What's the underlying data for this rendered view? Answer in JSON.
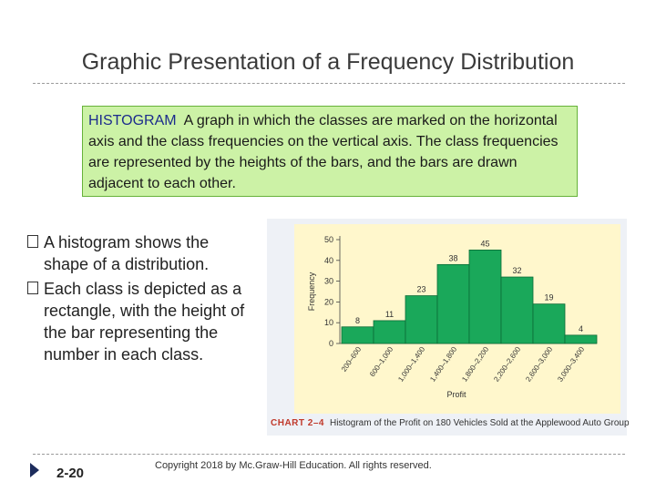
{
  "slide": {
    "title": "Graphic Presentation of a Frequency Distribution",
    "definition": {
      "term": "HISTOGRAM",
      "text": "A graph in which the classes are marked on the horizontal axis and the class frequencies on the vertical axis. The class frequencies are represented by the heights of the bars, and the bars are drawn adjacent to each other."
    },
    "bullets": [
      "A histogram shows the shape of a distribution.",
      "Each class is depicted as a rectangle, with the height of the bar representing the number in each class."
    ],
    "caption": {
      "label": "CHART 2–4",
      "text": "Histogram of the Profit on 180 Vehicles Sold at the Applewood Auto Group"
    },
    "page_number": "2-20",
    "copyright": "Copyright 2018 by Mc.Graw-Hill Education. All rights reserved."
  },
  "chart_data": {
    "type": "bar",
    "categories": [
      "200–600",
      "600–1,000",
      "1,000–1,400",
      "1,400–1,800",
      "1,800–2,200",
      "2,200–2,600",
      "2,600–3,000",
      "3,000–3,400"
    ],
    "values": [
      8,
      11,
      23,
      38,
      45,
      32,
      19,
      4
    ],
    "title": "",
    "xlabel": "Profit",
    "ylabel": "Frequency",
    "ylim": [
      0,
      50
    ],
    "yticks": [
      0,
      10,
      20,
      30,
      40,
      50
    ],
    "data_labels": true,
    "bar_color": "#1aa85a",
    "bar_edge_color": "#0b6b36",
    "plot_background": "#fff7cc",
    "legend": "none",
    "grid": false
  }
}
